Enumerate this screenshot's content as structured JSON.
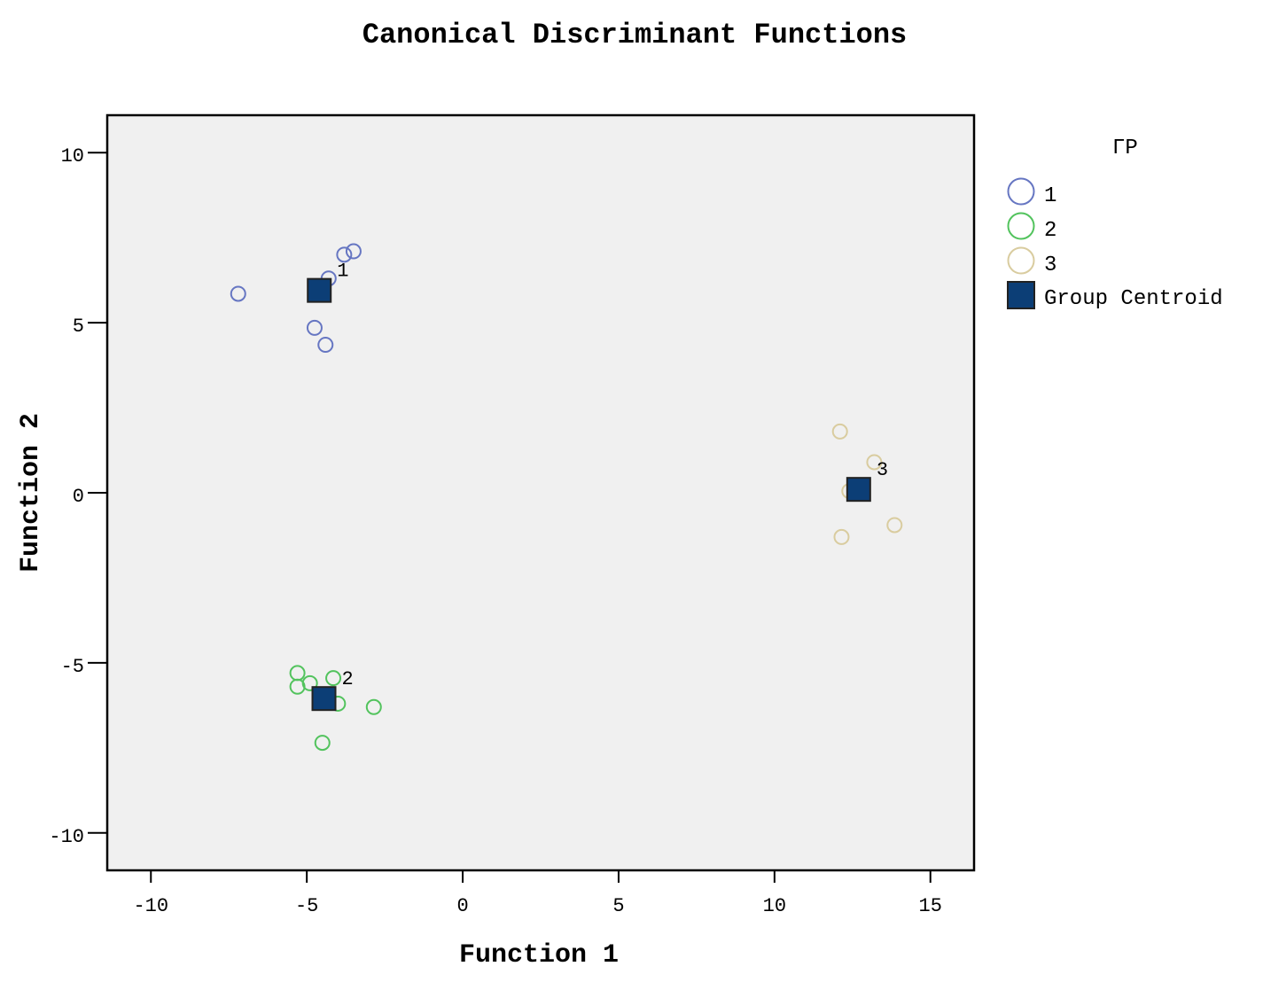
{
  "chart_data": {
    "type": "scatter",
    "title": "Canonical Discriminant Functions",
    "xlabel": "Function 1",
    "ylabel": "Function 2",
    "xlim": [
      -11.4,
      16.4
    ],
    "ylim": [
      -11.1,
      11.1
    ],
    "xticks": [
      -10,
      -5,
      0,
      5,
      10,
      15
    ],
    "yticks": [
      -10,
      -5,
      0,
      5,
      10
    ],
    "xtick_labels": [
      "-10",
      "-5",
      "0",
      "5",
      "10",
      "15"
    ],
    "ytick_labels": [
      "-10",
      "-5",
      "0",
      "5",
      "10"
    ],
    "grid": false,
    "legend": {
      "title": "ΓΡ",
      "placement": "right",
      "entries": [
        "1",
        "2",
        "3",
        "Group Centroid"
      ]
    },
    "series": [
      {
        "name": "1",
        "color": "#6676c2",
        "points": [
          {
            "x": -7.2,
            "y": 5.85
          },
          {
            "x": -4.3,
            "y": 6.3
          },
          {
            "x": -3.8,
            "y": 7.0
          },
          {
            "x": -3.5,
            "y": 7.1
          },
          {
            "x": -4.75,
            "y": 4.85
          },
          {
            "x": -4.4,
            "y": 4.35
          }
        ]
      },
      {
        "name": "2",
        "color": "#52c35d",
        "points": [
          {
            "x": -5.3,
            "y": -5.3
          },
          {
            "x": -5.3,
            "y": -5.7
          },
          {
            "x": -4.9,
            "y": -5.6
          },
          {
            "x": -4.15,
            "y": -5.45
          },
          {
            "x": -4.0,
            "y": -6.2
          },
          {
            "x": -2.85,
            "y": -6.3
          },
          {
            "x": -4.5,
            "y": -7.35
          }
        ]
      },
      {
        "name": "3",
        "color": "#d9cc9f",
        "points": [
          {
            "x": 12.1,
            "y": 1.8
          },
          {
            "x": 13.2,
            "y": 0.9
          },
          {
            "x": 12.4,
            "y": 0.05
          },
          {
            "x": 12.15,
            "y": -1.3
          },
          {
            "x": 13.85,
            "y": -0.95
          }
        ]
      }
    ],
    "centroids": {
      "name": "Group Centroid",
      "color": "#0c3e76",
      "points": [
        {
          "label": "1",
          "x": -4.6,
          "y": 5.95
        },
        {
          "label": "2",
          "x": -4.45,
          "y": -6.05
        },
        {
          "label": "3",
          "x": 12.7,
          "y": 0.1
        }
      ]
    }
  }
}
